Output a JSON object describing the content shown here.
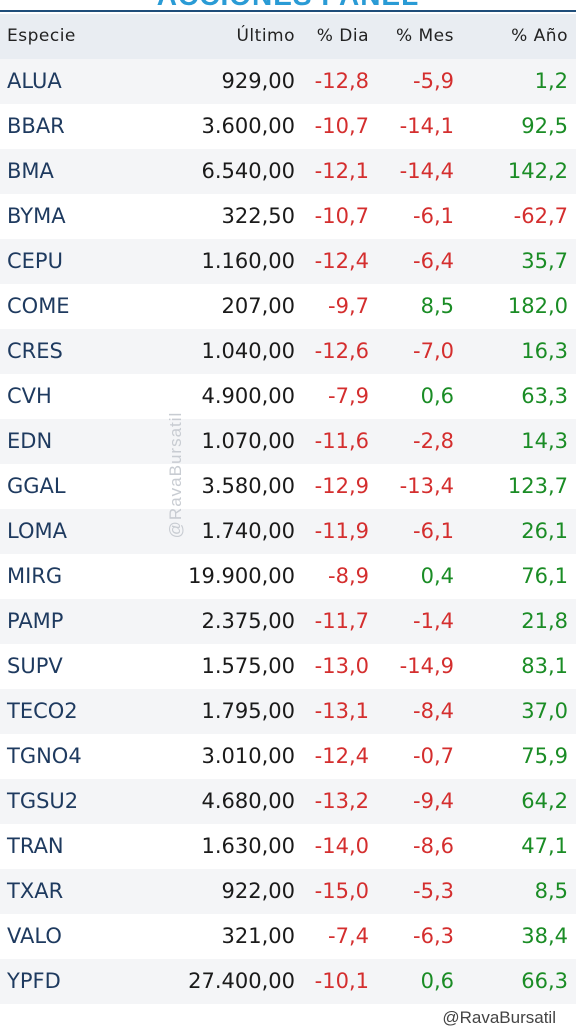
{
  "title": "ACCIONES PANEL",
  "columns": {
    "especie": "Especie",
    "ultimo": "Último",
    "dia": "% Dia",
    "mes": "% Mes",
    "ano": "% Año"
  },
  "rows": [
    {
      "especie": "ALUA",
      "ultimo": "929,00",
      "dia": "-12,8",
      "mes": "-5,9",
      "ano": "1,2"
    },
    {
      "especie": "BBAR",
      "ultimo": "3.600,00",
      "dia": "-10,7",
      "mes": "-14,1",
      "ano": "92,5"
    },
    {
      "especie": "BMA",
      "ultimo": "6.540,00",
      "dia": "-12,1",
      "mes": "-14,4",
      "ano": "142,2"
    },
    {
      "especie": "BYMA",
      "ultimo": "322,50",
      "dia": "-10,7",
      "mes": "-6,1",
      "ano": "-62,7"
    },
    {
      "especie": "CEPU",
      "ultimo": "1.160,00",
      "dia": "-12,4",
      "mes": "-6,4",
      "ano": "35,7"
    },
    {
      "especie": "COME",
      "ultimo": "207,00",
      "dia": "-9,7",
      "mes": "8,5",
      "ano": "182,0"
    },
    {
      "especie": "CRES",
      "ultimo": "1.040,00",
      "dia": "-12,6",
      "mes": "-7,0",
      "ano": "16,3"
    },
    {
      "especie": "CVH",
      "ultimo": "4.900,00",
      "dia": "-7,9",
      "mes": "0,6",
      "ano": "63,3"
    },
    {
      "especie": "EDN",
      "ultimo": "1.070,00",
      "dia": "-11,6",
      "mes": "-2,8",
      "ano": "14,3"
    },
    {
      "especie": "GGAL",
      "ultimo": "3.580,00",
      "dia": "-12,9",
      "mes": "-13,4",
      "ano": "123,7"
    },
    {
      "especie": "LOMA",
      "ultimo": "1.740,00",
      "dia": "-11,9",
      "mes": "-6,1",
      "ano": "26,1"
    },
    {
      "especie": "MIRG",
      "ultimo": "19.900,00",
      "dia": "-8,9",
      "mes": "0,4",
      "ano": "76,1"
    },
    {
      "especie": "PAMP",
      "ultimo": "2.375,00",
      "dia": "-11,7",
      "mes": "-1,4",
      "ano": "21,8"
    },
    {
      "especie": "SUPV",
      "ultimo": "1.575,00",
      "dia": "-13,0",
      "mes": "-14,9",
      "ano": "83,1"
    },
    {
      "especie": "TECO2",
      "ultimo": "1.795,00",
      "dia": "-13,1",
      "mes": "-8,4",
      "ano": "37,0"
    },
    {
      "especie": "TGNO4",
      "ultimo": "3.010,00",
      "dia": "-12,4",
      "mes": "-0,7",
      "ano": "75,9"
    },
    {
      "especie": "TGSU2",
      "ultimo": "4.680,00",
      "dia": "-13,2",
      "mes": "-9,4",
      "ano": "64,2"
    },
    {
      "especie": "TRAN",
      "ultimo": "1.630,00",
      "dia": "-14,0",
      "mes": "-8,6",
      "ano": "47,1"
    },
    {
      "especie": "TXAR",
      "ultimo": "922,00",
      "dia": "-15,0",
      "mes": "-5,3",
      "ano": "8,5"
    },
    {
      "especie": "VALO",
      "ultimo": "321,00",
      "dia": "-7,4",
      "mes": "-6,3",
      "ano": "38,4"
    },
    {
      "especie": "YPFD",
      "ultimo": "27.400,00",
      "dia": "-10,1",
      "mes": "0,6",
      "ano": "66,3"
    }
  ],
  "watermark": "@RavaBursatil",
  "footer_mark": "@RavaBursatil",
  "colors": {
    "negative": "#d42e2e",
    "positive": "#1a8c25",
    "title": "#2a9bd5",
    "ticker": "#1e3a5f"
  }
}
